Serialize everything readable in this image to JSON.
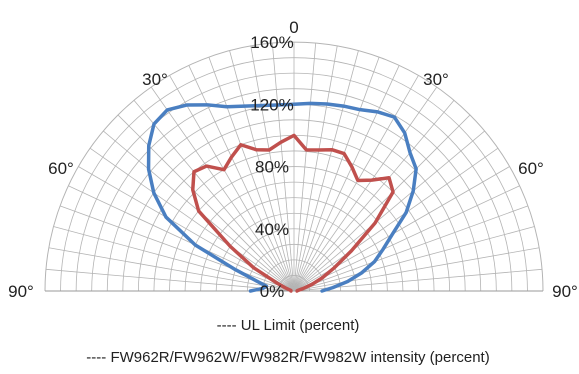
{
  "chart_data": {
    "type": "polar",
    "title": "",
    "angle_labels": [
      {
        "angle": 0,
        "text": "0"
      },
      {
        "angle": -30,
        "text": "30°"
      },
      {
        "angle": 30,
        "text": "30°"
      },
      {
        "angle": -60,
        "text": "60°"
      },
      {
        "angle": 60,
        "text": "60°"
      },
      {
        "angle": -90,
        "text": "90°"
      },
      {
        "angle": 90,
        "text": "90°"
      }
    ],
    "radial_ticks": [
      {
        "value": 0,
        "text": "0%"
      },
      {
        "value": 40,
        "text": "40%"
      },
      {
        "value": 80,
        "text": "80%"
      },
      {
        "value": 120,
        "text": "120%"
      },
      {
        "value": 160,
        "text": "160%"
      }
    ],
    "rmax": 160,
    "grid_rings": [
      10,
      20,
      30,
      40,
      50,
      60,
      70,
      80,
      90,
      100,
      110,
      120,
      130,
      140,
      150,
      160
    ],
    "spoke_step_deg": 5,
    "grid": true,
    "legend_position": "bottom",
    "series": [
      {
        "name": "UL Limit (percent)",
        "color": "#4a7fc1",
        "points": [
          [
            -90,
            28
          ],
          [
            -85,
            20
          ],
          [
            -80,
            18
          ],
          [
            -75,
            25
          ],
          [
            -70,
            40
          ],
          [
            -65,
            70
          ],
          [
            -60,
            95
          ],
          [
            -55,
            110
          ],
          [
            -50,
            122
          ],
          [
            -45,
            132
          ],
          [
            -40,
            140
          ],
          [
            -35,
            142
          ],
          [
            -30,
            138
          ],
          [
            -25,
            132
          ],
          [
            -20,
            126
          ],
          [
            -15,
            123
          ],
          [
            -10,
            121
          ],
          [
            -5,
            120
          ],
          [
            0,
            120
          ],
          [
            5,
            121
          ],
          [
            10,
            122
          ],
          [
            15,
            123
          ],
          [
            20,
            124
          ],
          [
            25,
            127
          ],
          [
            30,
            129
          ],
          [
            35,
            124
          ],
          [
            40,
            116
          ],
          [
            45,
            111
          ],
          [
            50,
            100
          ],
          [
            55,
            88
          ],
          [
            60,
            73
          ],
          [
            65,
            63
          ],
          [
            70,
            55
          ],
          [
            75,
            45
          ],
          [
            80,
            35
          ],
          [
            85,
            25
          ],
          [
            90,
            18
          ]
        ]
      },
      {
        "name": "FW962R/FW962W/FW982R/FW982W intensity (percent)",
        "color": "#c0504d",
        "points": [
          [
            -90,
            2
          ],
          [
            -85,
            2
          ],
          [
            -80,
            2
          ],
          [
            -75,
            3
          ],
          [
            -70,
            6
          ],
          [
            -65,
            12
          ],
          [
            -60,
            30
          ],
          [
            -55,
            50
          ],
          [
            -50,
            80
          ],
          [
            -45,
            92
          ],
          [
            -40,
            100
          ],
          [
            -35,
            98
          ],
          [
            -30,
            90
          ],
          [
            -25,
            95
          ],
          [
            -20,
            100
          ],
          [
            -15,
            94
          ],
          [
            -10,
            92
          ],
          [
            -5,
            96
          ],
          [
            0,
            100
          ],
          [
            5,
            91
          ],
          [
            10,
            92
          ],
          [
            15,
            94
          ],
          [
            20,
            94
          ],
          [
            25,
            88
          ],
          [
            30,
            82
          ],
          [
            35,
            87
          ],
          [
            40,
            95
          ],
          [
            45,
            90
          ],
          [
            50,
            68
          ],
          [
            55,
            45
          ],
          [
            60,
            30
          ],
          [
            65,
            20
          ],
          [
            70,
            12
          ],
          [
            75,
            6
          ],
          [
            80,
            3
          ],
          [
            85,
            2
          ],
          [
            90,
            2
          ]
        ]
      }
    ]
  },
  "legend": {
    "dash": "----",
    "items": [
      "UL Limit (percent)",
      "FW962R/FW962W/FW982R/FW982W intensity (percent)"
    ]
  }
}
